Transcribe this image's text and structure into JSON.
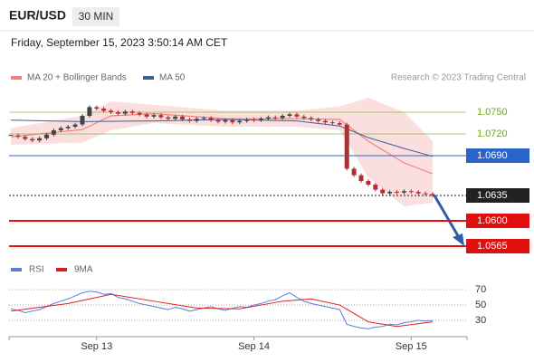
{
  "chart_data": {
    "type": "candlestick",
    "title": "EUR/USD",
    "timeframe": "30 MIN",
    "subtitle": "Friday, September 15, 2023 3:50:14 AM CET",
    "source": "Research © 2023 Trading Central",
    "up_color": "#444444",
    "down_color": "#b03030",
    "close": [
      1.0718,
      1.0716,
      1.0713,
      1.0711,
      1.0714,
      1.0719,
      1.0725,
      1.0728,
      1.073,
      1.0733,
      1.0745,
      1.0757,
      1.0755,
      1.0752,
      1.075,
      1.0748,
      1.0751,
      1.0749,
      1.0747,
      1.0744,
      1.0746,
      1.0743,
      1.0741,
      1.0744,
      1.074,
      1.0738,
      1.0741,
      1.0742,
      1.0739,
      1.0737,
      1.0739,
      1.0736,
      1.0738,
      1.074,
      1.0739,
      1.0741,
      1.0743,
      1.0742,
      1.0745,
      1.0747,
      1.0744,
      1.0742,
      1.074,
      1.0738,
      1.0736,
      1.0735,
      1.0733,
      1.0672,
      1.0663,
      1.0655,
      1.065,
      1.0643,
      1.0638,
      1.064,
      1.0639,
      1.0641,
      1.064,
      1.0638,
      1.0637,
      1.0635
    ],
    "xlim": [
      0,
      59
    ],
    "xticks": [
      {
        "value": 12,
        "label": "Sep 13"
      },
      {
        "value": 34,
        "label": "Sep 14"
      },
      {
        "value": 56,
        "label": "Sep 15"
      }
    ],
    "ylim": [
      1.0545,
      1.0785
    ],
    "bollinger": {
      "name": "MA 20 + Bollinger Bands",
      "color": "#f08080",
      "x": [
        0,
        10,
        14,
        20,
        30,
        40,
        46,
        50,
        55,
        59
      ],
      "upper": [
        1.0728,
        1.0745,
        1.0765,
        1.076,
        1.0752,
        1.0752,
        1.0758,
        1.077,
        1.075,
        1.071
      ],
      "middle": [
        1.0716,
        1.0726,
        1.0745,
        1.0748,
        1.0741,
        1.0741,
        1.074,
        1.071,
        1.068,
        1.0665
      ],
      "lower": [
        1.0705,
        1.0708,
        1.0725,
        1.0735,
        1.073,
        1.073,
        1.0725,
        1.066,
        1.062,
        1.0625
      ]
    },
    "ma50": {
      "name": "MA 50",
      "color": "#3a5f9a",
      "x": [
        0,
        10,
        20,
        30,
        40,
        46,
        50,
        55,
        59
      ],
      "values": [
        1.0739,
        1.0737,
        1.0738,
        1.074,
        1.0738,
        1.0731,
        1.0715,
        1.07,
        1.0689
      ]
    },
    "levels": [
      {
        "value": 1.075,
        "label": "1.0750",
        "color": "#6aaa1e",
        "style": "text"
      },
      {
        "value": 1.072,
        "label": "1.0720",
        "color": "#6aaa1e",
        "style": "text"
      },
      {
        "value": 1.069,
        "label": "1.0690",
        "color": "#2a64c8",
        "style": "box"
      },
      {
        "value": 1.0635,
        "label": "1.0635",
        "color": "#222222",
        "style": "box"
      },
      {
        "value": 1.06,
        "label": "1.0600",
        "color": "#e01010",
        "style": "box"
      },
      {
        "value": 1.0565,
        "label": "1.0565",
        "color": "#e01010",
        "style": "box"
      }
    ],
    "rsi": {
      "ylim": [
        11,
        82
      ],
      "yticks": [
        70,
        50,
        30
      ],
      "series": {
        "name": "RSI",
        "color": "#5b7fd6",
        "values": [
          45,
          43,
          40,
          42,
          44,
          48,
          52,
          55,
          58,
          62,
          66,
          68,
          67,
          64,
          65,
          60,
          58,
          55,
          52,
          50,
          48,
          46,
          44,
          47,
          45,
          42,
          44,
          46,
          48,
          45,
          43,
          46,
          48,
          47,
          50,
          52,
          55,
          57,
          62,
          66,
          60,
          55,
          52,
          50,
          48,
          46,
          44,
          25,
          22,
          20,
          19,
          21,
          22,
          25,
          24,
          27,
          28,
          30,
          29,
          30
        ]
      },
      "ma": {
        "name": "9MA",
        "color": "#d92020",
        "x": [
          0,
          8,
          14,
          20,
          26,
          32,
          38,
          42,
          46,
          50,
          54,
          59
        ],
        "values": [
          42,
          52,
          64,
          55,
          46,
          45,
          55,
          58,
          50,
          28,
          22,
          28
        ]
      }
    }
  }
}
